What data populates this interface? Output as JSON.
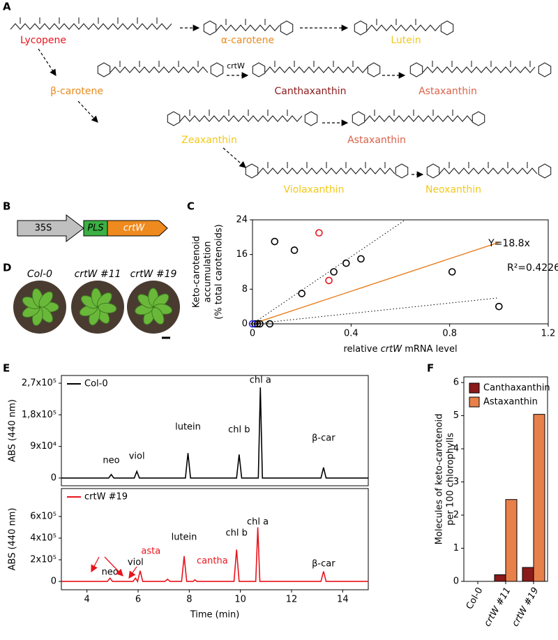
{
  "panel_labels": [
    "A",
    "B",
    "C",
    "D",
    "E",
    "F"
  ],
  "pathway": {
    "enzyme": "crtW",
    "compounds": [
      {
        "name": "Lycopene",
        "color": "#e8141c"
      },
      {
        "name": "α-carotene",
        "color": "#e88a1e"
      },
      {
        "name": "Lutein",
        "color": "#f2c81a"
      },
      {
        "name": "β-carotene",
        "color": "#e88a1e"
      },
      {
        "name": "Canthaxanthin",
        "color": "#8b1a1a"
      },
      {
        "name": "Astaxanthin",
        "color": "#d9624a"
      },
      {
        "name": "Zeaxanthin",
        "color": "#f2c81a"
      },
      {
        "name": "Astaxanthin",
        "color": "#d9624a"
      },
      {
        "name": "Violaxanthin",
        "color": "#f2c81a"
      },
      {
        "name": "Neoxanthin",
        "color": "#f2c81a"
      }
    ]
  },
  "construct": {
    "promoter": "35S",
    "transit": "PLS",
    "gene": "crtW"
  },
  "plants": [
    "Col-0",
    "crtW #11",
    "crtW #19"
  ],
  "chart_data": [
    {
      "type": "scatter",
      "y_label": [
        "Keto-carotenoid",
        "accumulation",
        "(% total carotenoids)"
      ],
      "x_label": [
        "relative ",
        "crtW",
        " mRNA level"
      ],
      "xlim": [
        0,
        1.2
      ],
      "xticks": [
        0,
        0.4,
        0.8,
        1.2
      ],
      "ylim": [
        0,
        24
      ],
      "yticks": [
        0,
        8,
        16,
        24
      ],
      "series": [
        {
          "color": "#000000",
          "x": [
            0.01,
            0.02,
            0.03,
            0.07,
            0.09,
            0.17,
            0.2,
            0.33,
            0.38,
            0.44,
            0.81,
            1.0
          ],
          "values": [
            0,
            0,
            0,
            0,
            19,
            17,
            7,
            12,
            14,
            15,
            12,
            4
          ]
        },
        {
          "color": "#e8141c",
          "x": [
            0.27,
            0.31
          ],
          "values": [
            21,
            10
          ]
        },
        {
          "color": "#2a2aff",
          "x": [
            0
          ],
          "values": [
            0
          ]
        }
      ],
      "fit": {
        "color": "#e87d1e",
        "x": [
          0,
          1
        ],
        "values": [
          0,
          18.8
        ]
      },
      "confidence": [
        {
          "x": [
            0,
            0.62
          ],
          "values": [
            0,
            24
          ]
        },
        {
          "x": [
            0,
            1
          ],
          "values": [
            0,
            6
          ]
        }
      ],
      "annotations": [
        "Y=18.8x",
        "R²=0.4226"
      ]
    },
    {
      "type": "line",
      "y_label": "ABS (440 nm)",
      "xlim": [
        3,
        15
      ],
      "ylim": [
        -22000,
        292000
      ],
      "yticks": [
        0,
        {
          "value": 90000,
          "label": "9x10⁴"
        },
        {
          "value": 180000,
          "label": "1,8x10⁵"
        },
        {
          "value": 270000,
          "label": "2,7x10⁵"
        }
      ],
      "x": [
        3,
        4.85,
        4.95,
        5.05,
        5.85,
        5.95,
        6.05,
        7.85,
        7.95,
        8.05,
        9.85,
        9.95,
        10.05,
        10.7,
        10.78,
        10.86,
        13.15,
        13.25,
        13.35,
        15
      ],
      "series": [
        {
          "name": "Col-0",
          "color": "#000000",
          "values": [
            0,
            0,
            10000,
            0,
            0,
            19000,
            0,
            0,
            71000,
            0,
            0,
            67000,
            0,
            0,
            258000,
            0,
            0,
            30000,
            0,
            0
          ]
        }
      ],
      "annotations": [
        {
          "text": "neo",
          "x": 4.95,
          "color": "#000000"
        },
        {
          "text": "viol",
          "x": 5.95,
          "color": "#000000"
        },
        {
          "text": "lutein",
          "x": 7.95,
          "color": "#000000"
        },
        {
          "text": "chl b",
          "x": 9.95,
          "color": "#000000"
        },
        {
          "text": "chl a",
          "x": 10.78,
          "color": "#000000"
        },
        {
          "text": "β-car",
          "x": 13.25,
          "color": "#000000"
        }
      ]
    },
    {
      "type": "line",
      "y_label": "ABS (440 nm)",
      "x_label": "Time (min)",
      "xlim": [
        3,
        15
      ],
      "xticks": [
        4,
        6,
        8,
        10,
        12,
        14
      ],
      "ylim": [
        -77000,
        858000
      ],
      "yticks": [
        0,
        {
          "value": 200000,
          "label": "2x10⁵"
        },
        {
          "value": 400000,
          "label": "4x10⁵"
        },
        {
          "value": 600000,
          "label": "6x10⁵"
        }
      ],
      "x": [
        3,
        4.8,
        4.9,
        5.0,
        5.8,
        5.9,
        5.98,
        6.08,
        6.18,
        7.05,
        7.15,
        7.25,
        7.7,
        7.8,
        7.9,
        8.15,
        8.22,
        8.3,
        9.75,
        9.85,
        9.95,
        10.6,
        10.68,
        10.76,
        13.15,
        13.25,
        13.35,
        15
      ],
      "series": [
        {
          "name": "crtW #19",
          "color": "#e8141c",
          "values": [
            0,
            0,
            30000,
            0,
            0,
            30000,
            0,
            98000,
            0,
            0,
            20000,
            0,
            0,
            234000,
            0,
            0,
            15000,
            0,
            0,
            293000,
            0,
            0,
            500000,
            0,
            0,
            93000,
            0,
            0
          ]
        }
      ],
      "annotations": [
        {
          "text": "neo",
          "x": 4.9,
          "color": "#000000"
        },
        {
          "text": "viol",
          "x": 5.9,
          "color": "#000000"
        },
        {
          "text": "asta",
          "x": 6.5,
          "color": "#e8141c"
        },
        {
          "text": "lutein",
          "x": 7.8,
          "color": "#000000"
        },
        {
          "text": "cantha",
          "x": 8.9,
          "color": "#e8141c"
        },
        {
          "text": "chl b",
          "x": 9.85,
          "color": "#000000"
        },
        {
          "text": "chl a",
          "x": 10.68,
          "color": "#000000"
        },
        {
          "text": "β-car",
          "x": 13.25,
          "color": "#000000"
        }
      ]
    },
    {
      "type": "bar",
      "y_label": [
        "Molecules of keto-carotenoid",
        "per 100 chlorophylls"
      ],
      "categories": [
        "Col-0",
        "crtW #11",
        "crtW #19"
      ],
      "ylim": [
        0,
        6.17
      ],
      "yticks": [
        0,
        1,
        2,
        3,
        4,
        5,
        6
      ],
      "legend": "top-left",
      "series": [
        {
          "name": "Canthaxanthin",
          "color": "#8b1a1a",
          "values": [
            0,
            0.2,
            0.42
          ]
        },
        {
          "name": "Astaxanthin",
          "color": "#e8804a",
          "values": [
            0,
            2.47,
            5.04
          ]
        }
      ]
    }
  ]
}
